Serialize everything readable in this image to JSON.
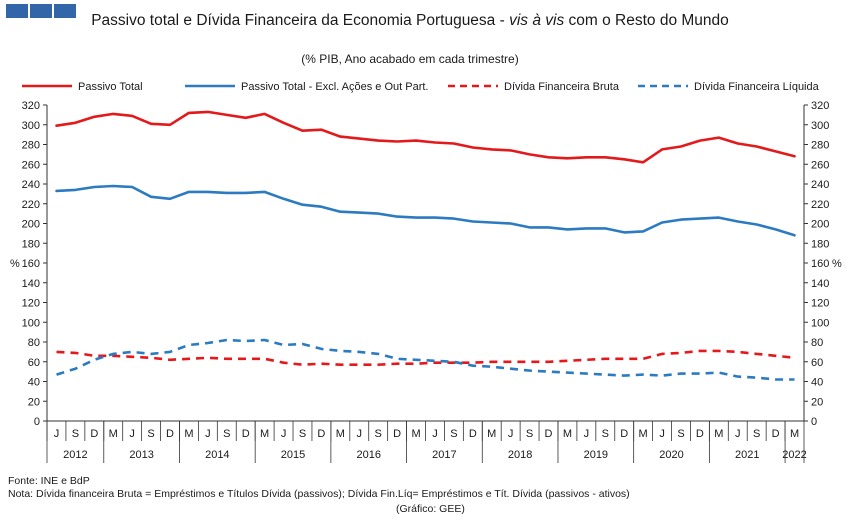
{
  "header": {
    "title_part1": "Passivo total e Dívida Financeira da Economia Portuguesa - ",
    "title_emph": "vis à vis",
    "title_part2": " com o Resto do Mundo",
    "subtitle": "(% PIB, Ano acabado em cada trimestre)",
    "logo_color": "#3366a8"
  },
  "footer": {
    "source": "Fonte: INE e BdP",
    "note": "Nota: Dívida financeira Bruta = Empréstimos e Títulos Dívida (passivos); Dívida Fin.Líq= Empréstimos e Tít. Dívida (passivos - ativos)",
    "credit": "(Gráfico: GEE)"
  },
  "chart_data": {
    "type": "line",
    "ylabel_left": "%",
    "ylabel_right": "%",
    "ylim": [
      0,
      320
    ],
    "yticks": [
      0,
      20,
      40,
      60,
      80,
      100,
      120,
      140,
      160,
      180,
      200,
      220,
      240,
      260,
      280,
      300,
      320
    ],
    "grid": false,
    "legend_position": "top",
    "quarter_labels": [
      "J",
      "S",
      "D",
      "M",
      "J",
      "S",
      "D",
      "M",
      "J",
      "S",
      "D",
      "M",
      "J",
      "S",
      "D",
      "M",
      "J",
      "S",
      "D",
      "M",
      "J",
      "S",
      "D",
      "M",
      "J",
      "S",
      "D",
      "M",
      "J",
      "S",
      "D",
      "M",
      "J",
      "S",
      "D",
      "M",
      "J",
      "S",
      "D",
      "M"
    ],
    "years": [
      {
        "label": "2012",
        "start": 0,
        "end": 2
      },
      {
        "label": "2013",
        "start": 3,
        "end": 6
      },
      {
        "label": "2014",
        "start": 7,
        "end": 10
      },
      {
        "label": "2015",
        "start": 11,
        "end": 14
      },
      {
        "label": "2016",
        "start": 15,
        "end": 18
      },
      {
        "label": "2017",
        "start": 19,
        "end": 22
      },
      {
        "label": "2018",
        "start": 23,
        "end": 26
      },
      {
        "label": "2019",
        "start": 27,
        "end": 30
      },
      {
        "label": "2020",
        "start": 31,
        "end": 34
      },
      {
        "label": "2021",
        "start": 35,
        "end": 38
      },
      {
        "label": "2022",
        "start": 39,
        "end": 39
      }
    ],
    "series": [
      {
        "name": "Passivo Total",
        "color": "#e3191c",
        "dash": false,
        "values": [
          299,
          302,
          308,
          311,
          309,
          301,
          300,
          312,
          313,
          310,
          307,
          311,
          302,
          294,
          295,
          288,
          286,
          284,
          283,
          284,
          282,
          281,
          277,
          275,
          274,
          270,
          267,
          266,
          267,
          267,
          265,
          262,
          275,
          278,
          284,
          287,
          281,
          278,
          273,
          268
        ]
      },
      {
        "name": "Passivo Total - Excl. Ações e Out Part.",
        "color": "#2c7bc0",
        "dash": false,
        "values": [
          233,
          234,
          237,
          238,
          237,
          227,
          225,
          232,
          232,
          231,
          231,
          232,
          225,
          219,
          217,
          212,
          211,
          210,
          207,
          206,
          206,
          205,
          202,
          201,
          200,
          196,
          196,
          194,
          195,
          195,
          191,
          192,
          201,
          204,
          205,
          206,
          202,
          199,
          194,
          188
        ]
      },
      {
        "name": "Dívida Financeira Bruta",
        "color": "#e3191c",
        "dash": true,
        "values": [
          70,
          69,
          66,
          66,
          65,
          64,
          62,
          63,
          64,
          63,
          63,
          63,
          59,
          57,
          58,
          57,
          57,
          57,
          58,
          58,
          59,
          59,
          59,
          60,
          60,
          60,
          60,
          61,
          62,
          63,
          63,
          63,
          68,
          69,
          71,
          71,
          70,
          68,
          66,
          64
        ]
      },
      {
        "name": "Dívida Financeira Líquida",
        "color": "#2c7bc0",
        "dash": true,
        "values": [
          47,
          53,
          62,
          68,
          70,
          68,
          70,
          77,
          79,
          82,
          81,
          82,
          77,
          78,
          73,
          71,
          70,
          68,
          63,
          62,
          61,
          60,
          56,
          55,
          53,
          51,
          50,
          49,
          48,
          47,
          46,
          47,
          46,
          48,
          48,
          49,
          45,
          44,
          42,
          42
        ]
      }
    ]
  }
}
